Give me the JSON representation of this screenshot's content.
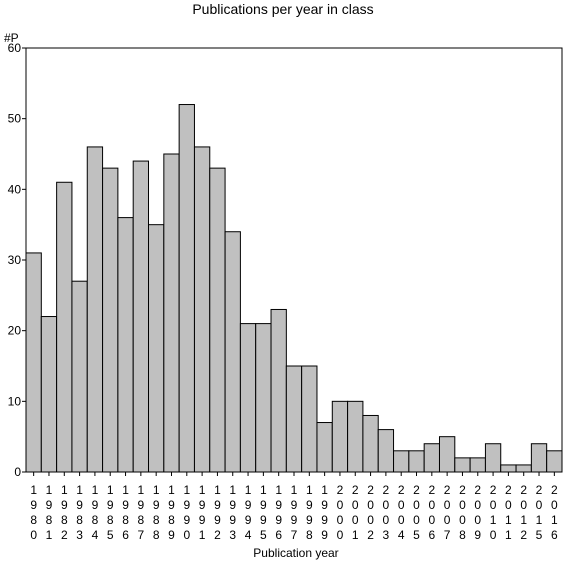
{
  "chart_data": {
    "type": "bar",
    "title": "Publications per year in class",
    "ylabel": "#P",
    "xlabel": "Publication year",
    "ylim": [
      0,
      60
    ],
    "yticks": [
      0,
      10,
      20,
      30,
      40,
      50,
      60
    ],
    "categories": [
      "1980",
      "1981",
      "1982",
      "1983",
      "1984",
      "1985",
      "1986",
      "1987",
      "1988",
      "1989",
      "1990",
      "1991",
      "1992",
      "1993",
      "1994",
      "1995",
      "1996",
      "1997",
      "1998",
      "1999",
      "2000",
      "2001",
      "2002",
      "2003",
      "2004",
      "2005",
      "2006",
      "2007",
      "2008",
      "2009",
      "2010",
      "2011",
      "2012",
      "2015",
      "2016"
    ],
    "values": [
      31,
      22,
      41,
      27,
      46,
      43,
      36,
      44,
      35,
      45,
      52,
      46,
      43,
      34,
      21,
      21,
      23,
      15,
      15,
      7,
      10,
      10,
      8,
      6,
      3,
      3,
      4,
      5,
      2,
      2,
      4,
      1,
      1,
      4,
      3
    ],
    "bar_color": "#c0c0c0",
    "grid": false
  }
}
